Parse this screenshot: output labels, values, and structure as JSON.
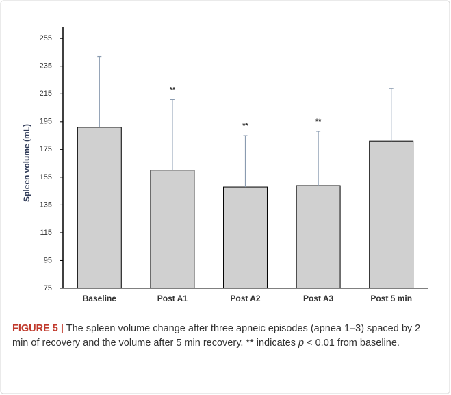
{
  "chart_data": {
    "type": "bar",
    "ylabel": "Spleen volume (mL)",
    "categories": [
      "Baseline",
      "Post A1",
      "Post A2",
      "Post A3",
      "Post 5 min"
    ],
    "values": [
      191,
      160,
      148,
      149,
      181
    ],
    "errors": [
      51,
      51,
      37,
      39,
      38
    ],
    "significance_labels": [
      null,
      "**",
      "**",
      "**",
      null
    ],
    "color": "#d0d0d0",
    "error_color": "#8a9bb0",
    "ylim": [
      75,
      263
    ],
    "yticks": [
      75,
      95,
      115,
      135,
      155,
      175,
      195,
      215,
      235,
      255
    ],
    "grid": false
  },
  "caption": {
    "label": "FIGURE 5 |",
    "text_1": " The spleen volume change after three apneic episodes (apnea 1–3) spaced by 2 min of recovery and the volume after 5 min recovery. ** indicates ",
    "italic": "p",
    "text_2": " < 0.01 from baseline."
  }
}
